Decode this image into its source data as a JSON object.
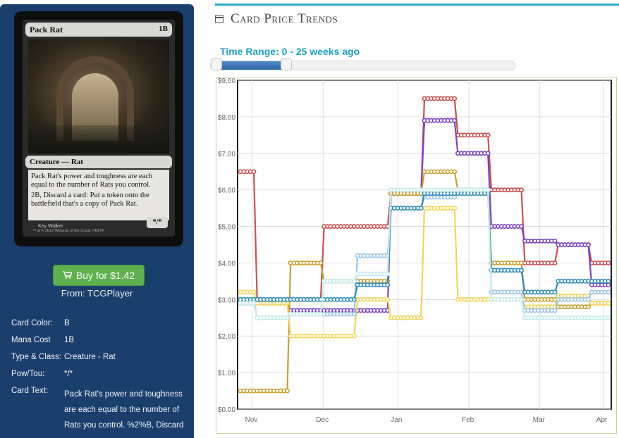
{
  "card": {
    "name": "Pack Rat",
    "cost": "1B",
    "type_line": "Creature — Rat",
    "rules_text_1": "Pack Rat's power and toughness are each equal to the number of Rats you control.",
    "rules_text_2": "2B, Discard a card: Put a token onto the battlefield that's a copy of Pack Rat.",
    "artist": "Key Walker",
    "copyright": "™ & © 2012 Wizards of the Coast 74/274",
    "power_toughness": "*/*"
  },
  "buy": {
    "label": "Buy for $1.42",
    "icon": "cart-icon",
    "from": "From: TCGPlayer"
  },
  "info": [
    {
      "label": "Card Color:",
      "value": "B"
    },
    {
      "label": "Mana Cost",
      "value": "1B"
    },
    {
      "label": "Type & Class:",
      "value": "Creature - Rat"
    },
    {
      "label": "Pow/Tou:",
      "value": "*/*"
    },
    {
      "label": "Card Text:",
      "value": "Pack Rat's power and toughness are each equal to the number of Rats you control. %2%B, Discard"
    }
  ],
  "section": {
    "title": "Card Price Trends",
    "icon": "calendar-icon"
  },
  "time_range": {
    "label": "Time Range: 0 - 25 weeks ago",
    "start_fraction": 0.0,
    "end_fraction": 0.25
  },
  "chart_data": {
    "type": "line",
    "x": [
      "Nov 1",
      "Nov 15",
      "Dec 1",
      "Dec 15",
      "Jan 1",
      "Jan 15",
      "Feb 1",
      "Feb 15",
      "Mar 1",
      "Mar 15",
      "Apr 1",
      "Apr 5"
    ],
    "xticks": [
      "Nov",
      "Dec",
      "Jan",
      "Feb",
      "Mar",
      "Apr"
    ],
    "yticks": [
      "$0.00",
      "$1.00",
      "$2.00",
      "$3.00",
      "$4.00",
      "$5.00",
      "$6.00",
      "$7.00",
      "$8.00",
      "$9.00"
    ],
    "ylim": [
      0,
      9
    ],
    "grid": true,
    "series": [
      {
        "color": "#c9504f",
        "values": [
          6.5,
          3.0,
          3.0,
          5.0,
          5.0,
          5.9,
          8.5,
          7.5,
          6.0,
          4.0,
          4.5,
          4.0
        ]
      },
      {
        "color": "#7b42c4",
        "values": [
          2.9,
          2.9,
          2.7,
          2.7,
          2.7,
          5.9,
          7.9,
          7.0,
          5.0,
          4.6,
          4.5,
          3.4
        ]
      },
      {
        "color": "#c7a02e",
        "values": [
          0.5,
          0.5,
          4.0,
          3.5,
          3.5,
          5.9,
          6.5,
          6.0,
          4.0,
          3.0,
          2.8,
          2.9
        ]
      },
      {
        "color": "#f2d55a",
        "values": [
          3.2,
          2.9,
          2.0,
          2.0,
          3.0,
          2.5,
          5.5,
          3.0,
          3.0,
          2.8,
          3.1,
          2.9
        ]
      },
      {
        "color": "#9bc6e6",
        "values": [
          3.0,
          2.5,
          2.6,
          2.6,
          4.2,
          5.5,
          5.8,
          6.0,
          3.2,
          2.7,
          3.0,
          3.2
        ]
      },
      {
        "color": "#2f8db8",
        "values": [
          3.0,
          3.0,
          3.0,
          3.0,
          3.4,
          5.5,
          5.9,
          5.9,
          3.8,
          3.2,
          3.5,
          3.5
        ]
      },
      {
        "color": "#c5ecec",
        "values": [
          2.9,
          2.5,
          2.6,
          3.5,
          3.7,
          6.0,
          6.0,
          6.0,
          3.0,
          2.5,
          2.5,
          2.5
        ]
      }
    ]
  }
}
